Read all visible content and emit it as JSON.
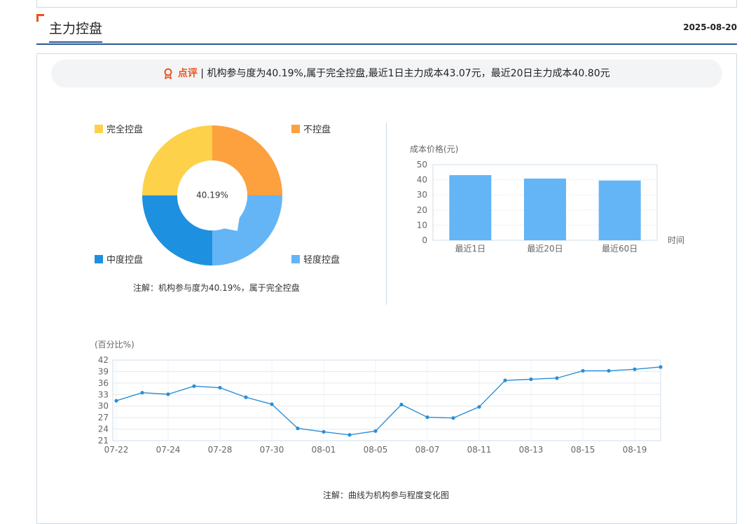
{
  "header": {
    "title": "主力控盘",
    "date": "2025-08-20"
  },
  "comment": {
    "icon": "award-icon",
    "label": "点评",
    "text": " | 机构参与度为40.19%,属于完全控盘,最近1日主力成本43.07元，最近20日主力成本40.80元"
  },
  "colors": {
    "complete": "#fdd14a",
    "none": "#fda03e",
    "medium": "#1e90e0",
    "light": "#64b5f6",
    "bar": "#64b5f6",
    "line": "#2a8fd6",
    "accent": "#e8541e",
    "header_line": "#2a5a96"
  },
  "chart_data": [
    {
      "type": "pie",
      "variant": "donut",
      "center_label": "40.19%",
      "categories": [
        "完全控盘",
        "不控盘",
        "轻度控盘",
        "中度控盘"
      ],
      "values": [
        25,
        25,
        25,
        25
      ],
      "indicator_value": 40.19,
      "note": "注解：机构参与度为40.19%，属于完全控盘"
    },
    {
      "type": "bar",
      "ylabel": "成本价格(元)",
      "xlabel": "时间",
      "categories": [
        "最近1日",
        "最近20日",
        "最近60日"
      ],
      "values": [
        43.07,
        40.8,
        39.5
      ],
      "ylim": [
        0,
        50
      ],
      "yticks": [
        0,
        10,
        20,
        30,
        40,
        50
      ]
    },
    {
      "type": "line",
      "ylabel": "(百分比%)",
      "ylim": [
        21,
        42
      ],
      "yticks": [
        21,
        24,
        27,
        30,
        33,
        36,
        39,
        42
      ],
      "x": [
        "07-22",
        "07-23",
        "07-24",
        "07-25",
        "07-28",
        "07-29",
        "07-30",
        "07-31",
        "08-01",
        "08-04",
        "08-05",
        "08-06",
        "08-07",
        "08-08",
        "08-11",
        "08-12",
        "08-13",
        "08-14",
        "08-15",
        "08-18",
        "08-19",
        "08-20"
      ],
      "xticks": [
        "07-22",
        "07-24",
        "07-28",
        "07-30",
        "08-01",
        "08-05",
        "08-07",
        "08-11",
        "08-13",
        "08-15",
        "08-19"
      ],
      "values": [
        31.4,
        33.5,
        33.1,
        35.2,
        34.8,
        32.3,
        30.5,
        24.2,
        23.3,
        22.5,
        23.5,
        30.4,
        27.1,
        26.9,
        29.8,
        36.7,
        37.0,
        37.3,
        39.2,
        39.2,
        39.6,
        40.2
      ],
      "note": "注解：曲线为机构参与程度变化图"
    }
  ]
}
